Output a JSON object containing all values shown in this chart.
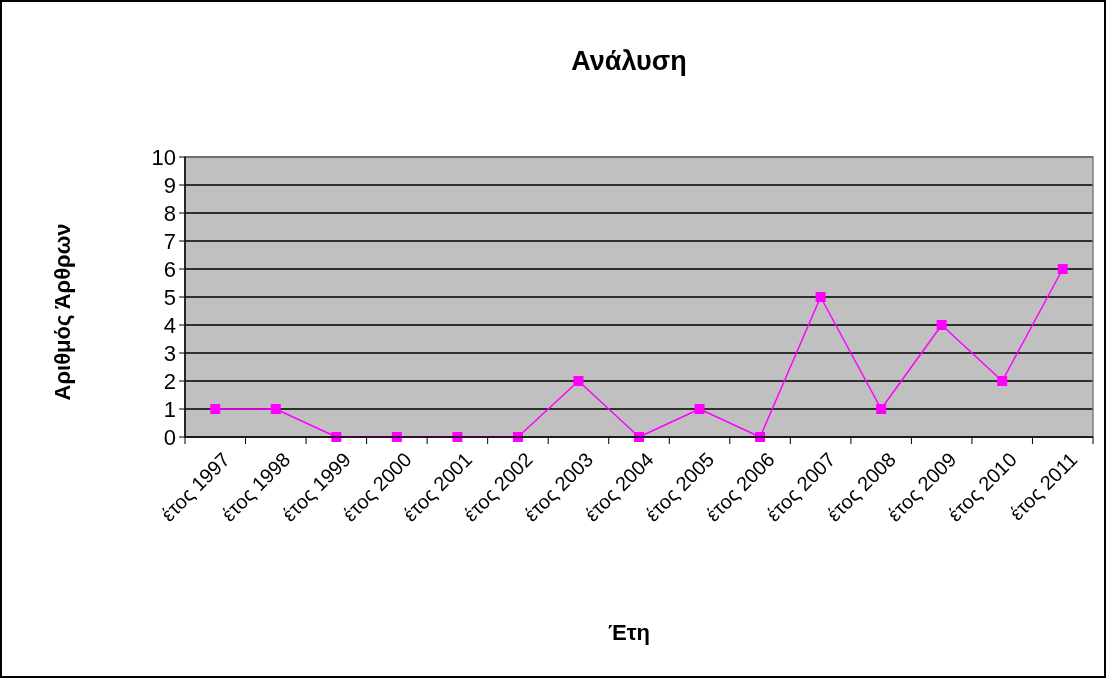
{
  "chart_data": {
    "type": "line",
    "title": "Ανάλυση",
    "xlabel": "Έτη",
    "ylabel": "Αριθμός Άρθρων",
    "categories": [
      "έτος 1997",
      "έτος 1998",
      "έτος 1999",
      "έτος 2000",
      "έτος 2001",
      "έτος 2002",
      "έτος 2003",
      "έτος 2004",
      "έτος 2005",
      "έτος 2006",
      "έτος 2007",
      "έτος 2008",
      "έτος 2009",
      "έτος 2010",
      "έτος 2011"
    ],
    "series": [
      {
        "color": "#ff00ff",
        "values": [
          1,
          1,
          0,
          0,
          0,
          0,
          2,
          0,
          1,
          0,
          5,
          1,
          4,
          2,
          6
        ]
      }
    ],
    "ylim": [
      0,
      10
    ],
    "yticks": [
      0,
      1,
      2,
      3,
      4,
      5,
      6,
      7,
      8,
      9,
      10
    ],
    "grid": "y",
    "marker": "square",
    "line_style": "solid"
  }
}
